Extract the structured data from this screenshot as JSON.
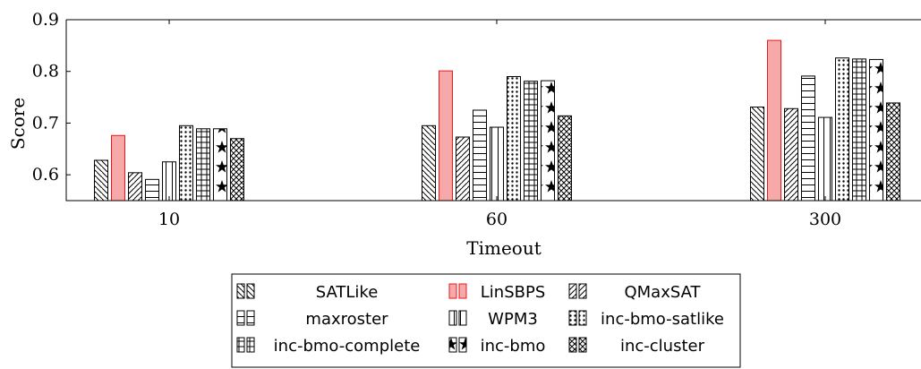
{
  "chart_data": {
    "type": "bar",
    "xlabel": "Timeout",
    "ylabel": "Score",
    "categories": [
      "10",
      "60",
      "300"
    ],
    "ylim": [
      0.55,
      0.9
    ],
    "yticks": [
      "0.6",
      "0.7",
      "0.8",
      "0.9"
    ],
    "legend_position": "below",
    "series": [
      {
        "name": "SATLike",
        "pattern": "diag-down",
        "color": "#000000",
        "values": [
          0.628,
          0.695,
          0.731
        ]
      },
      {
        "name": "LinSBPS",
        "pattern": "solid",
        "color": "#e41a1c",
        "values": [
          0.676,
          0.801,
          0.86
        ]
      },
      {
        "name": "QMaxSAT",
        "pattern": "diag-up",
        "color": "#000000",
        "values": [
          0.604,
          0.673,
          0.728
        ]
      },
      {
        "name": "maxroster",
        "pattern": "horizontal",
        "color": "#000000",
        "values": [
          0.591,
          0.725,
          0.791
        ]
      },
      {
        "name": "WPM3",
        "pattern": "vertical",
        "color": "#000000",
        "values": [
          0.625,
          0.692,
          0.711
        ]
      },
      {
        "name": "inc-bmo-satlike",
        "pattern": "dots",
        "color": "#000000",
        "values": [
          0.695,
          0.79,
          0.826
        ]
      },
      {
        "name": "inc-bmo-complete",
        "pattern": "grid",
        "color": "#000000",
        "values": [
          0.689,
          0.781,
          0.824
        ]
      },
      {
        "name": "inc-bmo",
        "pattern": "stars",
        "color": "#000000",
        "values": [
          0.689,
          0.782,
          0.823
        ]
      },
      {
        "name": "inc-cluster",
        "pattern": "crosshatch",
        "color": "#000000",
        "values": [
          0.67,
          0.714,
          0.739
        ]
      }
    ]
  }
}
